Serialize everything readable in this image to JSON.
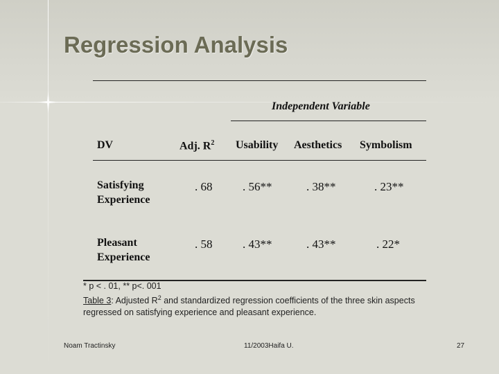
{
  "slide": {
    "title": "Regression Analysis"
  },
  "table": {
    "group_header": "Independent Variable",
    "headers": {
      "dv": "DV",
      "adj_r2_base": "Adj. R",
      "adj_r2_sup": "2",
      "usability": "Usability",
      "aesthetics": "Aesthetics",
      "symbolism": "Symbolism"
    },
    "rows": [
      {
        "dv": "Satisfying Experience",
        "adj_r2": ". 68",
        "usability": ". 56**",
        "aesthetics": ". 38**",
        "symbolism": ". 23**"
      },
      {
        "dv": "Pleasant Experience",
        "adj_r2": ". 58",
        "usability": ". 43**",
        "aesthetics": ". 43**",
        "symbolism": ". 22*"
      }
    ]
  },
  "notes": {
    "significance": "* p < . 01, ** p<. 001",
    "caption_label": "Table 3",
    "caption_part1": ":  Adjusted R",
    "caption_sup": "2",
    "caption_part2": " and standardized regression coefficients of the three skin aspects regressed on satisfying experience and pleasant experience."
  },
  "footer": {
    "author": "Noam Tractinsky",
    "date_center": "11/2003Haifa U.",
    "page": "27"
  }
}
